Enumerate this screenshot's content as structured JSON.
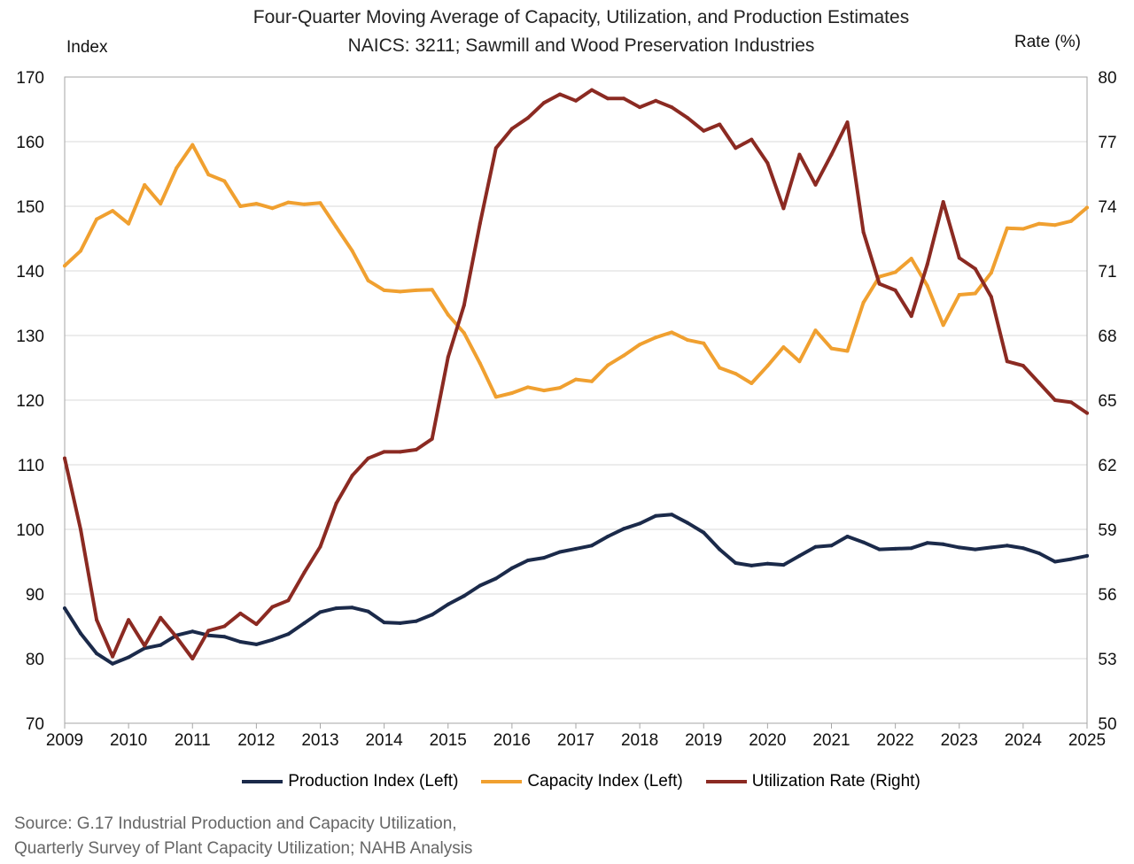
{
  "chart_data": {
    "type": "line",
    "title": "Four-Quarter Moving Average of Capacity, Utilization, and Production Estimates",
    "subtitle": "NAICS: 3211; Sawmill and Wood Preservation Industries",
    "ylabel_left": "Index",
    "ylabel_right": "Rate (%)",
    "ylim_left": [
      70,
      170
    ],
    "yticks_left": [
      "70",
      "80",
      "90",
      "100",
      "110",
      "120",
      "130",
      "140",
      "150",
      "160",
      "170"
    ],
    "ylim_right": [
      50,
      80
    ],
    "yticks_right": [
      "50",
      "53",
      "56",
      "59",
      "62",
      "65",
      "68",
      "71",
      "74",
      "77",
      "80"
    ],
    "xlim": [
      2009,
      2025
    ],
    "xticks": [
      "2009",
      "2010",
      "2011",
      "2012",
      "2013",
      "2014",
      "2015",
      "2016",
      "2017",
      "2018",
      "2019",
      "2020",
      "2021",
      "2022",
      "2023",
      "2024",
      "2025"
    ],
    "grid": true,
    "legend_position": "bottom",
    "series": [
      {
        "name": "Production Index (Left)",
        "axis": "left",
        "color": "#1b2a4a",
        "x": [
          2009.0,
          2009.25,
          2009.5,
          2009.75,
          2010.0,
          2010.25,
          2010.5,
          2010.75,
          2011.0,
          2011.25,
          2011.5,
          2011.75,
          2012.0,
          2012.25,
          2012.5,
          2012.75,
          2013.0,
          2013.25,
          2013.5,
          2013.75,
          2014.0,
          2014.25,
          2014.5,
          2014.75,
          2015.0,
          2015.25,
          2015.5,
          2015.75,
          2016.0,
          2016.25,
          2016.5,
          2016.75,
          2017.0,
          2017.25,
          2017.5,
          2017.75,
          2018.0,
          2018.25,
          2018.5,
          2018.75,
          2019.0,
          2019.25,
          2019.5,
          2019.75,
          2020.0,
          2020.25,
          2020.5,
          2020.75,
          2021.0,
          2021.25,
          2021.5,
          2021.75,
          2022.0,
          2022.25,
          2022.5,
          2022.75,
          2023.0,
          2023.25,
          2023.5,
          2023.75,
          2024.0,
          2024.25,
          2024.5,
          2024.75,
          2025.0
        ],
        "y": [
          87.8,
          83.9,
          80.8,
          79.2,
          80.2,
          81.6,
          82.1,
          83.6,
          84.2,
          83.6,
          83.4,
          82.6,
          82.2,
          82.9,
          83.8,
          85.5,
          87.2,
          87.8,
          87.9,
          87.3,
          85.6,
          85.5,
          85.8,
          86.8,
          88.4,
          89.7,
          91.3,
          92.4,
          94.0,
          95.2,
          95.6,
          96.5,
          97.0,
          97.5,
          98.9,
          100.1,
          100.9,
          102.1,
          102.3,
          101.0,
          99.5,
          96.9,
          94.8,
          94.4,
          94.7,
          94.5,
          95.9,
          97.3,
          97.5,
          98.9,
          98.0,
          96.9,
          97.0,
          97.1,
          97.9,
          97.7,
          97.2,
          96.9,
          97.2,
          97.5,
          97.1,
          96.3,
          95.0,
          95.4,
          95.9
        ]
      },
      {
        "name": "Capacity Index (Left)",
        "axis": "left",
        "color": "#f0a030",
        "x": [
          2009.0,
          2009.25,
          2009.5,
          2009.75,
          2010.0,
          2010.25,
          2010.5,
          2010.75,
          2011.0,
          2011.25,
          2011.5,
          2011.75,
          2012.0,
          2012.25,
          2012.5,
          2012.75,
          2013.0,
          2013.25,
          2013.5,
          2013.75,
          2014.0,
          2014.25,
          2014.5,
          2014.75,
          2015.0,
          2015.25,
          2015.5,
          2015.75,
          2016.0,
          2016.25,
          2016.5,
          2016.75,
          2017.0,
          2017.25,
          2017.5,
          2017.75,
          2018.0,
          2018.25,
          2018.5,
          2018.75,
          2019.0,
          2019.25,
          2019.5,
          2019.75,
          2020.0,
          2020.25,
          2020.5,
          2020.75,
          2021.0,
          2021.25,
          2021.5,
          2021.75,
          2022.0,
          2022.25,
          2022.5,
          2022.75,
          2023.0,
          2023.25,
          2023.5,
          2023.75,
          2024.0,
          2024.25,
          2024.5,
          2024.75,
          2025.0
        ],
        "y": [
          140.8,
          143.1,
          148.0,
          149.3,
          147.3,
          153.3,
          150.4,
          155.9,
          159.5,
          154.9,
          153.9,
          150.0,
          150.4,
          149.7,
          150.6,
          150.3,
          150.5,
          146.8,
          143.1,
          138.5,
          137.0,
          136.8,
          137.0,
          137.1,
          133.2,
          130.4,
          125.7,
          120.5,
          121.1,
          122.0,
          121.5,
          121.9,
          123.2,
          122.9,
          125.4,
          126.9,
          128.6,
          129.7,
          130.5,
          129.3,
          128.8,
          125.0,
          124.1,
          122.6,
          125.3,
          128.2,
          126.0,
          130.8,
          128.0,
          127.6,
          135.1,
          139.1,
          139.8,
          141.9,
          137.7,
          131.6,
          136.3,
          136.5,
          139.7,
          146.6,
          146.5,
          147.3,
          147.1,
          147.7,
          149.8
        ]
      },
      {
        "name": "Utilization Rate (Right)",
        "axis": "right",
        "color": "#8b2a22",
        "x": [
          2009.0,
          2009.25,
          2009.5,
          2009.75,
          2010.0,
          2010.25,
          2010.5,
          2010.75,
          2011.0,
          2011.25,
          2011.5,
          2011.75,
          2012.0,
          2012.25,
          2012.5,
          2012.75,
          2013.0,
          2013.25,
          2013.5,
          2013.75,
          2014.0,
          2014.25,
          2014.5,
          2014.75,
          2015.0,
          2015.25,
          2015.5,
          2015.75,
          2016.0,
          2016.25,
          2016.5,
          2016.75,
          2017.0,
          2017.25,
          2017.5,
          2017.75,
          2018.0,
          2018.25,
          2018.5,
          2018.75,
          2019.0,
          2019.25,
          2019.5,
          2019.75,
          2020.0,
          2020.25,
          2020.5,
          2020.75,
          2021.0,
          2021.25,
          2021.5,
          2021.75,
          2022.0,
          2022.25,
          2022.5,
          2022.75,
          2023.0,
          2023.25,
          2023.5,
          2023.75,
          2024.0,
          2024.25,
          2024.5,
          2024.75,
          2025.0
        ],
        "y": [
          62.3,
          59.0,
          54.8,
          53.1,
          54.8,
          53.6,
          54.9,
          54.0,
          53.0,
          54.3,
          54.5,
          55.1,
          54.6,
          55.4,
          55.7,
          57.0,
          58.2,
          60.2,
          61.5,
          62.3,
          62.6,
          62.6,
          62.7,
          63.2,
          67.0,
          69.4,
          73.2,
          76.7,
          77.6,
          78.1,
          78.8,
          79.2,
          78.9,
          79.4,
          79.0,
          79.0,
          78.6,
          78.9,
          78.6,
          78.1,
          77.5,
          77.8,
          76.7,
          77.1,
          76.0,
          73.9,
          76.4,
          75.0,
          76.4,
          77.9,
          72.8,
          70.4,
          70.1,
          68.9,
          71.3,
          74.2,
          71.6,
          71.1,
          69.8,
          66.8,
          66.6,
          65.8,
          65.0,
          64.9,
          64.4
        ]
      }
    ]
  },
  "source_line_1": "Source: G.17 Industrial Production and Capacity Utilization,",
  "source_line_2": "Quarterly Survey of Plant Capacity Utilization; NAHB Analysis"
}
